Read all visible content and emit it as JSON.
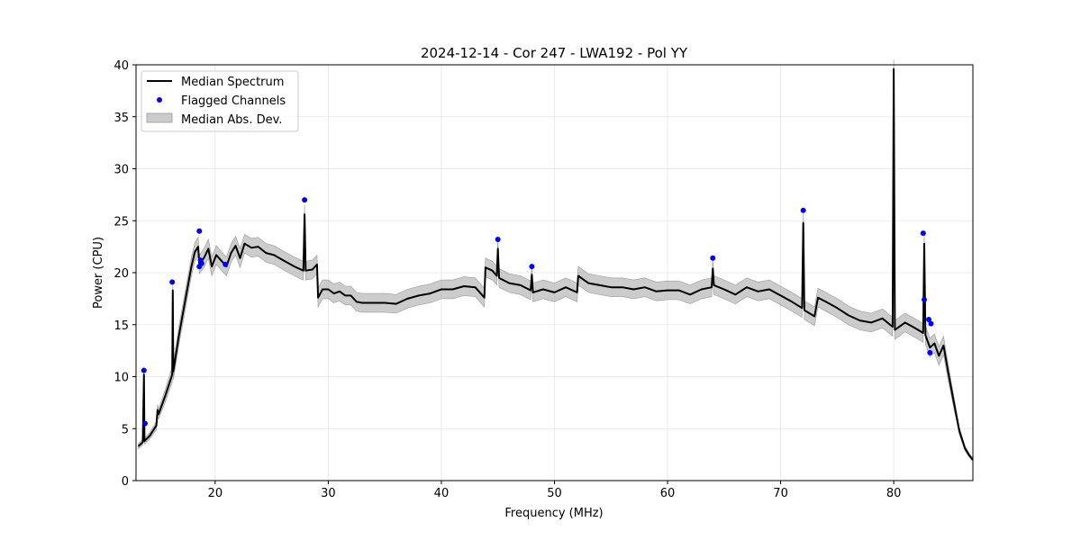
{
  "chart_data": {
    "type": "line",
    "title": "2024-12-14 - Cor 247 - LWA192 - Pol YY",
    "xlabel": "Frequency (MHz)",
    "ylabel": "Power (CPU)",
    "xlim": [
      13,
      87
    ],
    "ylim": [
      0,
      40
    ],
    "x_ticks": [
      20,
      30,
      40,
      50,
      60,
      70,
      80
    ],
    "y_ticks": [
      0,
      5,
      10,
      15,
      20,
      25,
      30,
      35,
      40
    ],
    "x_tick_labels": [
      "20",
      "30",
      "40",
      "50",
      "60",
      "70",
      "80"
    ],
    "y_tick_labels": [
      "0",
      "5",
      "10",
      "15",
      "20",
      "25",
      "30",
      "35",
      "40"
    ],
    "grid": true,
    "legend_position": "top-left",
    "legend": [
      "Median Spectrum",
      "Flagged Channels",
      "Median Abs. Dev."
    ],
    "series": [
      {
        "name": "Median Spectrum",
        "kind": "line",
        "color": "#000000",
        "points": [
          [
            13.2,
            3.3
          ],
          [
            13.6,
            3.7
          ],
          [
            13.7,
            10.2
          ],
          [
            13.75,
            3.8
          ],
          [
            14.2,
            4.3
          ],
          [
            14.8,
            5.3
          ],
          [
            14.9,
            6.8
          ],
          [
            15.0,
            6.4
          ],
          [
            15.6,
            8.2
          ],
          [
            16.2,
            10.2
          ],
          [
            16.25,
            18.3
          ],
          [
            16.3,
            10.5
          ],
          [
            16.8,
            14.0
          ],
          [
            17.4,
            17.6
          ],
          [
            17.9,
            20.6
          ],
          [
            18.2,
            22.0
          ],
          [
            18.5,
            22.5
          ],
          [
            18.6,
            20.8
          ],
          [
            19.0,
            21.4
          ],
          [
            19.4,
            22.3
          ],
          [
            19.7,
            20.6
          ],
          [
            20.1,
            21.7
          ],
          [
            20.5,
            21.2
          ],
          [
            21.0,
            20.6
          ],
          [
            21.4,
            21.9
          ],
          [
            21.8,
            22.6
          ],
          [
            22.2,
            21.4
          ],
          [
            22.6,
            22.8
          ],
          [
            23.2,
            22.4
          ],
          [
            23.8,
            22.5
          ],
          [
            24.5,
            21.9
          ],
          [
            25.2,
            21.7
          ],
          [
            26.0,
            21.2
          ],
          [
            27.0,
            20.6
          ],
          [
            27.8,
            20.2
          ],
          [
            27.9,
            25.6
          ],
          [
            28.0,
            20.2
          ],
          [
            28.6,
            20.3
          ],
          [
            29.0,
            20.8
          ],
          [
            29.1,
            17.6
          ],
          [
            29.5,
            18.4
          ],
          [
            30.0,
            18.4
          ],
          [
            30.5,
            18.0
          ],
          [
            31.0,
            18.2
          ],
          [
            31.5,
            17.8
          ],
          [
            32.0,
            17.8
          ],
          [
            32.5,
            17.2
          ],
          [
            33.0,
            17.1
          ],
          [
            34.0,
            17.1
          ],
          [
            35.0,
            17.1
          ],
          [
            36.0,
            17.0
          ],
          [
            37.0,
            17.5
          ],
          [
            38.0,
            17.8
          ],
          [
            39.0,
            18.0
          ],
          [
            40.0,
            18.4
          ],
          [
            41.0,
            18.4
          ],
          [
            42.0,
            18.7
          ],
          [
            43.0,
            18.6
          ],
          [
            43.8,
            17.6
          ],
          [
            43.9,
            20.5
          ],
          [
            44.5,
            20.2
          ],
          [
            44.9,
            19.7
          ],
          [
            45.0,
            22.3
          ],
          [
            45.1,
            19.5
          ],
          [
            46.0,
            19.0
          ],
          [
            47.0,
            18.8
          ],
          [
            47.9,
            18.3
          ],
          [
            48.0,
            19.8
          ],
          [
            48.1,
            18.1
          ],
          [
            49.0,
            18.4
          ],
          [
            50.0,
            18.1
          ],
          [
            51.0,
            18.6
          ],
          [
            52.0,
            18.1
          ],
          [
            52.1,
            19.7
          ],
          [
            53.0,
            19.0
          ],
          [
            54.0,
            18.8
          ],
          [
            55.0,
            18.6
          ],
          [
            56.0,
            18.6
          ],
          [
            57.0,
            18.4
          ],
          [
            58.0,
            18.6
          ],
          [
            59.0,
            18.2
          ],
          [
            60.0,
            18.3
          ],
          [
            61.0,
            18.3
          ],
          [
            62.0,
            17.9
          ],
          [
            63.0,
            18.4
          ],
          [
            63.9,
            18.6
          ],
          [
            64.0,
            20.4
          ],
          [
            64.1,
            18.8
          ],
          [
            65.0,
            18.4
          ],
          [
            66.0,
            17.9
          ],
          [
            67.0,
            18.6
          ],
          [
            68.0,
            18.2
          ],
          [
            69.0,
            18.4
          ],
          [
            70.0,
            17.8
          ],
          [
            71.0,
            17.2
          ],
          [
            71.9,
            16.6
          ],
          [
            72.0,
            24.8
          ],
          [
            72.1,
            16.4
          ],
          [
            73.0,
            15.8
          ],
          [
            73.3,
            17.6
          ],
          [
            74.0,
            17.2
          ],
          [
            75.0,
            16.6
          ],
          [
            76.0,
            15.9
          ],
          [
            77.0,
            15.4
          ],
          [
            78.0,
            15.2
          ],
          [
            79.0,
            15.6
          ],
          [
            79.9,
            14.8
          ],
          [
            80.0,
            39.6
          ],
          [
            80.1,
            14.5
          ],
          [
            81.0,
            15.2
          ],
          [
            82.0,
            14.6
          ],
          [
            82.6,
            14.2
          ],
          [
            82.7,
            22.8
          ],
          [
            82.8,
            14.0
          ],
          [
            83.2,
            12.8
          ],
          [
            83.6,
            13.2
          ],
          [
            84.0,
            12.0
          ],
          [
            84.4,
            13.0
          ],
          [
            84.8,
            10.5
          ],
          [
            85.3,
            7.6
          ],
          [
            85.8,
            4.8
          ],
          [
            86.3,
            3.1
          ],
          [
            86.7,
            2.4
          ],
          [
            87.0,
            2.0
          ]
        ]
      },
      {
        "name": "Flagged Channels",
        "kind": "scatter",
        "color": "#0000ff",
        "points": [
          [
            13.7,
            10.6
          ],
          [
            13.8,
            5.5
          ],
          [
            16.2,
            19.1
          ],
          [
            18.6,
            24.0
          ],
          [
            18.6,
            20.6
          ],
          [
            18.7,
            21.2
          ],
          [
            18.8,
            20.9
          ],
          [
            20.9,
            20.8
          ],
          [
            27.9,
            27.0
          ],
          [
            45.0,
            23.2
          ],
          [
            48.0,
            20.6
          ],
          [
            64.0,
            21.4
          ],
          [
            72.0,
            26.0
          ],
          [
            82.6,
            23.8
          ],
          [
            82.7,
            17.4
          ],
          [
            83.1,
            15.5
          ],
          [
            83.2,
            12.3
          ],
          [
            83.3,
            15.1
          ]
        ]
      },
      {
        "name": "Median Abs. Dev.",
        "kind": "band",
        "color": "#b0b0b0",
        "half_width": 0.9
      }
    ]
  }
}
